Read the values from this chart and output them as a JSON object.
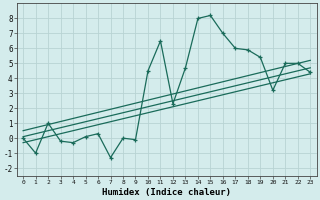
{
  "xlabel": "Humidex (Indice chaleur)",
  "bg_color": "#d4ecec",
  "grid_color": "#b8d4d4",
  "line_color": "#1a6b5a",
  "line1_x": [
    0,
    1,
    2,
    3,
    4,
    5,
    6,
    7,
    8,
    9,
    10,
    11,
    12,
    13,
    14,
    15,
    16,
    17,
    18,
    19,
    20,
    21,
    22,
    23
  ],
  "line1_y": [
    0.0,
    -1.0,
    1.0,
    -0.2,
    -0.3,
    0.1,
    0.3,
    -1.3,
    0.0,
    -0.1,
    4.5,
    6.5,
    2.3,
    4.7,
    8.0,
    8.2,
    7.0,
    6.0,
    5.9,
    5.4,
    3.2,
    5.0,
    5.0,
    4.4
  ],
  "line2_x": [
    0,
    23
  ],
  "line2_y": [
    -0.3,
    4.3
  ],
  "line3_x": [
    0,
    23
  ],
  "line3_y": [
    0.1,
    4.7
  ],
  "line4_x": [
    0,
    23
  ],
  "line4_y": [
    0.5,
    5.2
  ],
  "xlim": [
    -0.5,
    23.5
  ],
  "ylim": [
    -2.5,
    9.0
  ],
  "xticks": [
    0,
    1,
    2,
    3,
    4,
    5,
    6,
    7,
    8,
    9,
    10,
    11,
    12,
    13,
    14,
    15,
    16,
    17,
    18,
    19,
    20,
    21,
    22,
    23
  ],
  "yticks": [
    -2,
    -1,
    0,
    1,
    2,
    3,
    4,
    5,
    6,
    7,
    8
  ]
}
